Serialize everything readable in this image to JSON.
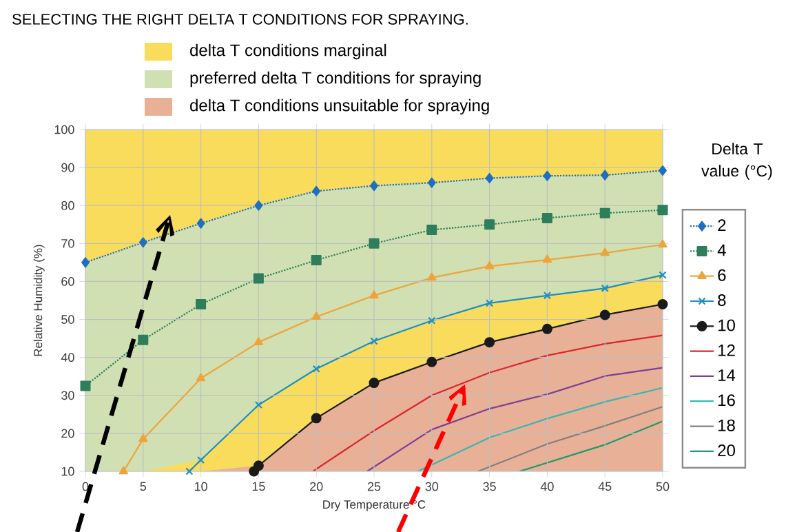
{
  "chart_data": {
    "type": "line",
    "title": "SELECTING THE RIGHT DELTA T CONDITIONS FOR SPRAYING.",
    "xlabel": "Dry Temperature °C",
    "ylabel": "Relative Humidity (%)",
    "legend_title": "Delta T value (°C)",
    "x": [
      0,
      5,
      10,
      15,
      20,
      25,
      30,
      35,
      40,
      45,
      50
    ],
    "xlim": [
      0,
      50
    ],
    "xticks": [
      0,
      5,
      10,
      15,
      20,
      25,
      30,
      35,
      40,
      45,
      50
    ],
    "ylim": [
      10,
      100
    ],
    "yticks": [
      10,
      20,
      30,
      40,
      50,
      60,
      70,
      80,
      90,
      100
    ],
    "grid": true,
    "legend": "right",
    "series": [
      {
        "name": "delta T conditions marginal",
        "type": "area",
        "color": "#f9dc5c",
        "x": [
          0,
          50
        ],
        "values": [
          100,
          100
        ]
      },
      {
        "name": "preferred delta T conditions for spraying",
        "type": "area",
        "color": "#d0e0b2",
        "values": [
          65,
          70.3,
          75.3,
          80,
          83.8,
          85.2,
          86,
          87.2,
          87.8,
          88,
          89.2
        ]
      },
      {
        "type": "area",
        "color": "#f9dc5c",
        "values": [
          10,
          10,
          13,
          27.5,
          37,
          44.3,
          49.7,
          54.3,
          56.3,
          58.2,
          61.7
        ]
      },
      {
        "name": "delta T conditions unsuitable for spraying",
        "type": "area",
        "color": "#e8b096",
        "values": [
          10,
          10,
          10,
          11.5,
          24,
          33.3,
          38.8,
          44,
          47.5,
          51.2,
          54
        ]
      },
      {
        "name": "2",
        "color": "#1f6fc0",
        "marker": "diamond",
        "line_style": "dotted",
        "values": [
          65,
          70.3,
          75.3,
          80,
          83.8,
          85.2,
          86,
          87.2,
          87.8,
          88,
          89.2
        ]
      },
      {
        "name": "4",
        "color": "#2e7d5b",
        "marker": "square",
        "line_style": "dotted",
        "values": [
          32.5,
          44.6,
          54,
          60.8,
          65.6,
          70,
          73.6,
          75,
          76.7,
          78,
          78.8
        ]
      },
      {
        "name": "6",
        "color": "#eea43a",
        "marker": "triangle",
        "line_style": "solid",
        "x": [
          3.3,
          5,
          10,
          15,
          20,
          25,
          30,
          35,
          40,
          45,
          50
        ],
        "values": [
          10,
          18.5,
          34.5,
          44,
          50.7,
          56.3,
          61,
          64,
          65.7,
          67.5,
          69.7
        ]
      },
      {
        "name": "8",
        "color": "#1b8fc4",
        "marker": "cross",
        "line_style": "solid",
        "x": [
          9,
          10,
          15,
          20,
          25,
          30,
          35,
          40,
          45,
          50
        ],
        "values": [
          10,
          13,
          27.5,
          37,
          44.3,
          49.7,
          54.3,
          56.3,
          58.2,
          61.7
        ]
      },
      {
        "name": "10",
        "color": "#1a1a1a",
        "marker": "circle",
        "line_style": "solid",
        "x": [
          14.6,
          15,
          20,
          25,
          30,
          35,
          40,
          45,
          50
        ],
        "values": [
          10,
          11.5,
          24,
          33.3,
          38.8,
          44,
          47.5,
          51.2,
          54
        ]
      },
      {
        "name": "12",
        "color": "#d9262e",
        "marker": "none",
        "line_style": "solid",
        "x": [
          19.7,
          25,
          30,
          35,
          40,
          45,
          50
        ],
        "values": [
          10,
          20.7,
          30,
          36,
          40.5,
          43.6,
          45.8
        ]
      },
      {
        "name": "14",
        "color": "#7b3f98",
        "marker": "none",
        "line_style": "solid",
        "x": [
          24.4,
          30,
          35,
          40,
          45,
          50
        ],
        "values": [
          10,
          21,
          26.5,
          30.3,
          35.1,
          37.3
        ]
      },
      {
        "name": "16",
        "color": "#3ab5b0",
        "marker": "none",
        "line_style": "solid",
        "x": [
          28.8,
          35,
          40,
          45,
          50
        ],
        "values": [
          10,
          18.9,
          23.9,
          28.3,
          32
        ]
      },
      {
        "name": "18",
        "color": "#808080",
        "marker": "none",
        "line_style": "solid",
        "x": [
          34,
          40,
          45,
          50
        ],
        "values": [
          10,
          17.2,
          22,
          27
        ]
      },
      {
        "name": "20",
        "color": "#1a9b6b",
        "marker": "none",
        "line_style": "solid",
        "x": [
          37.6,
          45,
          50
        ],
        "values": [
          10,
          17,
          23.2
        ]
      }
    ]
  }
}
